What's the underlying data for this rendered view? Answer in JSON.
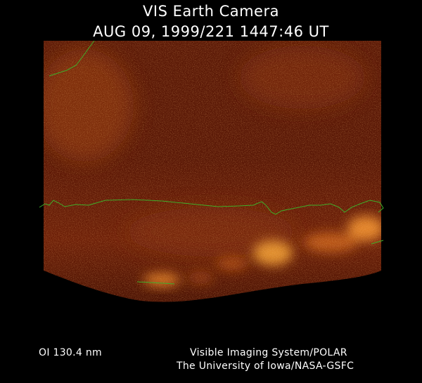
{
  "header": {
    "title": "VIS Earth Camera",
    "timestamp": "AUG 09, 1999/221 1447:46 UT"
  },
  "footer": {
    "wavelength": "OI  130.4 nm",
    "credit_line1": "Visible Imaging System/POLAR",
    "credit_line2": "The University of Iowa/NASA-GSFC"
  },
  "colors": {
    "background": "#000000",
    "text": "#ffffff",
    "coastline": "#3fae2a",
    "glow_base": "#5a1806",
    "glow_bright": "#f0a23a"
  }
}
